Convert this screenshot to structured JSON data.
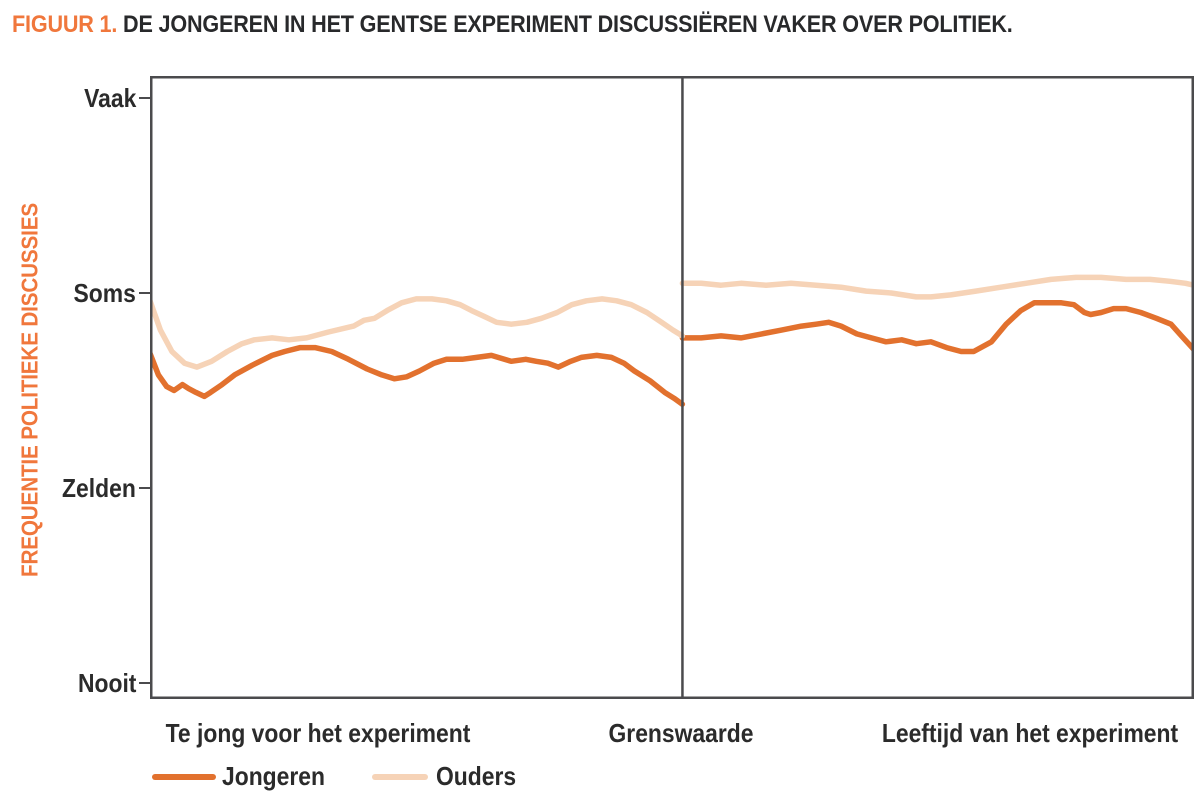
{
  "figure": {
    "title_prefix": "FIGUUR 1.",
    "title_text": " DE JONGEREN IN HET GENTSE EXPERIMENT DISCUSSIËREN VAKER OVER POLITIEK."
  },
  "chart_data": {
    "type": "line",
    "title": "FIGUUR 1. DE JONGEREN IN HET GENTSE EXPERIMENT DISCUSSIËREN VAKER OVER POLITIEK.",
    "ylabel": "FREQUENTIE POLITIEKE DISCUSSIES",
    "xlabel": "",
    "y_ticks": [
      "Vaak",
      "Soms",
      "Zelden",
      "Nooit"
    ],
    "y_tick_values": [
      3,
      2,
      1,
      0
    ],
    "ylim": [
      0,
      3.12
    ],
    "xlim": [
      0,
      100
    ],
    "grid": false,
    "legend_position": "bottom-left",
    "x_sections": [
      "Te jong voor het experiment",
      "Grenswaarde",
      "Leeftijd van het experiment"
    ],
    "cutoff_x": 51,
    "legend": [
      "Jongeren",
      "Ouders"
    ],
    "colors": {
      "jongeren": "#E2712E",
      "ouders": "#F6D3B7",
      "frame": "#4B4B4D",
      "text": "#2B2B2B",
      "accent": "#F0773C"
    },
    "series": [
      {
        "name": "Jongeren",
        "color_key": "jongeren",
        "stroke_width": 5.5,
        "segments": [
          [
            [
              0,
              1.69
            ],
            [
              0.8,
              1.58
            ],
            [
              1.6,
              1.52
            ],
            [
              2.3,
              1.5
            ],
            [
              3.1,
              1.53
            ],
            [
              3.7,
              1.51
            ],
            [
              4.4,
              1.49
            ],
            [
              5.2,
              1.47
            ],
            [
              5.8,
              1.49
            ],
            [
              6.9,
              1.53
            ],
            [
              8.1,
              1.58
            ],
            [
              9.8,
              1.63
            ],
            [
              11.7,
              1.68
            ],
            [
              12.9,
              1.7
            ],
            [
              14.4,
              1.72
            ],
            [
              15.8,
              1.72
            ],
            [
              17.4,
              1.7
            ],
            [
              19.0,
              1.66
            ],
            [
              20.8,
              1.61
            ],
            [
              22.2,
              1.58
            ],
            [
              23.4,
              1.56
            ],
            [
              24.6,
              1.57
            ],
            [
              25.8,
              1.6
            ],
            [
              27.2,
              1.64
            ],
            [
              28.4,
              1.66
            ],
            [
              29.9,
              1.66
            ],
            [
              31.3,
              1.67
            ],
            [
              32.7,
              1.68
            ],
            [
              34.6,
              1.65
            ],
            [
              36.0,
              1.66
            ],
            [
              37.0,
              1.65
            ],
            [
              38.1,
              1.64
            ],
            [
              39.1,
              1.62
            ],
            [
              40.3,
              1.65
            ],
            [
              41.3,
              1.67
            ],
            [
              42.8,
              1.68
            ],
            [
              44.2,
              1.67
            ],
            [
              45.4,
              1.64
            ],
            [
              46.4,
              1.6
            ],
            [
              47.9,
              1.55
            ],
            [
              49.3,
              1.49
            ],
            [
              50.2,
              1.46
            ],
            [
              51,
              1.43
            ]
          ],
          [
            [
              51,
              1.77
            ],
            [
              52.8,
              1.77
            ],
            [
              54.7,
              1.78
            ],
            [
              56.6,
              1.77
            ],
            [
              58.6,
              1.79
            ],
            [
              60.5,
              1.81
            ],
            [
              62.4,
              1.83
            ],
            [
              63.8,
              1.84
            ],
            [
              65.0,
              1.85
            ],
            [
              66.2,
              1.83
            ],
            [
              67.7,
              1.79
            ],
            [
              69.1,
              1.77
            ],
            [
              70.5,
              1.75
            ],
            [
              72.0,
              1.76
            ],
            [
              73.4,
              1.74
            ],
            [
              74.8,
              1.75
            ],
            [
              76.3,
              1.72
            ],
            [
              77.7,
              1.7
            ],
            [
              78.9,
              1.7
            ],
            [
              80.6,
              1.75
            ],
            [
              82.0,
              1.84
            ],
            [
              83.4,
              1.91
            ],
            [
              84.7,
              1.95
            ],
            [
              86.1,
              1.95
            ],
            [
              87.3,
              1.95
            ],
            [
              88.5,
              1.94
            ],
            [
              89.5,
              1.9
            ],
            [
              90.1,
              1.89
            ],
            [
              91.1,
              1.9
            ],
            [
              92.3,
              1.92
            ],
            [
              93.5,
              1.92
            ],
            [
              94.9,
              1.9
            ],
            [
              96.4,
              1.87
            ],
            [
              97.8,
              1.84
            ],
            [
              98.8,
              1.78
            ],
            [
              100,
              1.71
            ]
          ]
        ]
      },
      {
        "name": "Ouders",
        "color_key": "ouders",
        "stroke_width": 5.5,
        "segments": [
          [
            [
              0,
              1.96
            ],
            [
              1.0,
              1.81
            ],
            [
              2.1,
              1.7
            ],
            [
              3.3,
              1.64
            ],
            [
              4.5,
              1.62
            ],
            [
              5.9,
              1.65
            ],
            [
              7.4,
              1.7
            ],
            [
              8.8,
              1.74
            ],
            [
              10.0,
              1.76
            ],
            [
              11.7,
              1.77
            ],
            [
              13.3,
              1.76
            ],
            [
              15.0,
              1.77
            ],
            [
              17.1,
              1.8
            ],
            [
              19.5,
              1.83
            ],
            [
              20.5,
              1.86
            ],
            [
              21.5,
              1.87
            ],
            [
              22.7,
              1.91
            ],
            [
              24.1,
              1.95
            ],
            [
              25.5,
              1.97
            ],
            [
              27.0,
              1.97
            ],
            [
              28.4,
              1.96
            ],
            [
              29.7,
              1.94
            ],
            [
              30.8,
              1.91
            ],
            [
              32.0,
              1.88
            ],
            [
              33.2,
              1.85
            ],
            [
              34.6,
              1.84
            ],
            [
              36.1,
              1.85
            ],
            [
              37.5,
              1.87
            ],
            [
              39.0,
              1.9
            ],
            [
              40.4,
              1.94
            ],
            [
              41.8,
              1.96
            ],
            [
              43.3,
              1.97
            ],
            [
              44.7,
              1.96
            ],
            [
              46.1,
              1.94
            ],
            [
              47.6,
              1.9
            ],
            [
              49.0,
              1.85
            ],
            [
              50.1,
              1.81
            ],
            [
              51,
              1.78
            ]
          ],
          [
            [
              51,
              2.05
            ],
            [
              52.8,
              2.05
            ],
            [
              54.7,
              2.04
            ],
            [
              56.6,
              2.05
            ],
            [
              59.0,
              2.04
            ],
            [
              61.4,
              2.05
            ],
            [
              63.8,
              2.04
            ],
            [
              66.2,
              2.03
            ],
            [
              68.6,
              2.01
            ],
            [
              71.0,
              2.0
            ],
            [
              73.4,
              1.98
            ],
            [
              74.8,
              1.98
            ],
            [
              76.7,
              1.99
            ],
            [
              79.1,
              2.01
            ],
            [
              81.5,
              2.03
            ],
            [
              83.9,
              2.05
            ],
            [
              86.3,
              2.07
            ],
            [
              88.7,
              2.08
            ],
            [
              91.1,
              2.08
            ],
            [
              93.5,
              2.07
            ],
            [
              95.8,
              2.07
            ],
            [
              97.7,
              2.06
            ],
            [
              99.2,
              2.05
            ],
            [
              100,
              2.04
            ]
          ]
        ]
      }
    ]
  }
}
